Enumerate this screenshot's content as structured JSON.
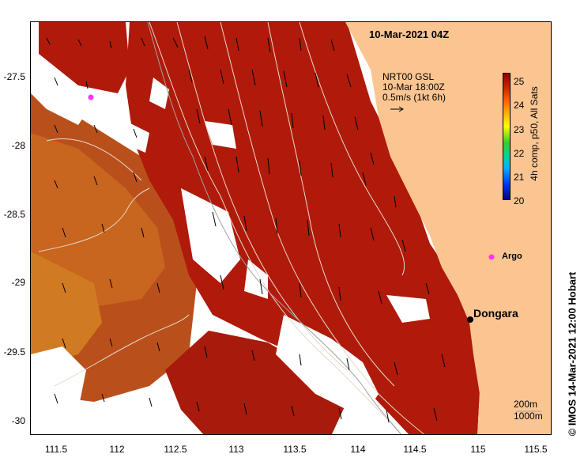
{
  "map": {
    "title": "10-Mar-2021 04Z",
    "legend_current": {
      "line1": "NRT00 GSL",
      "line2": "10-Mar 18:00Z",
      "line3": "0.5m/s (1kt 6h)"
    },
    "colorbar": {
      "title": "4h comp, p50, All Sats",
      "ticks": [
        "25",
        "24",
        "23",
        "22",
        "21",
        "20"
      ]
    },
    "isobaths": {
      "label1": "200m",
      "label2": "1000m"
    },
    "places": {
      "argo": "Argo",
      "dongara": "Dongara"
    },
    "footer": "© IMOS 14-Mar-2021 12:00 Hobart",
    "y_axis_labels": [
      "-27.5",
      "-28",
      "-28.5",
      "-29",
      "-29.5",
      "-30"
    ],
    "x_axis_labels": [
      "111.5",
      "112",
      "112.5",
      "113",
      "113.5",
      "114",
      "114.5",
      "115",
      "115.5"
    ],
    "colors": {
      "land": "#fbc592",
      "sst_warm": "#b01a0b",
      "sst_mid": "#c2561a",
      "sst_cool": "#d88a1e",
      "argo_marker": "#ff33ff"
    }
  }
}
